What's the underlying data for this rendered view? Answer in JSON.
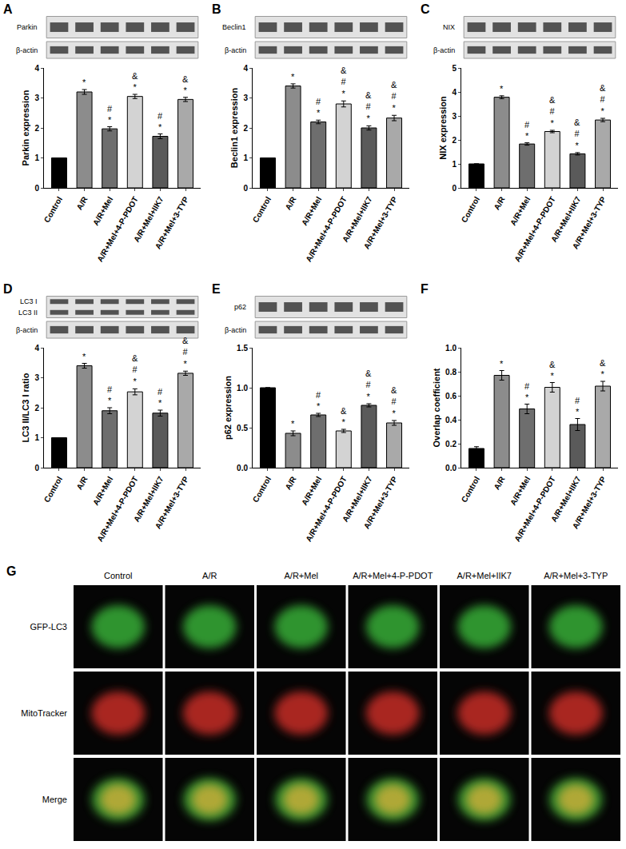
{
  "chart_data": [
    {
      "type": "bar",
      "title": "A",
      "ylabel": "Parkin expression",
      "blot_labels": [
        "Parkin",
        "β-actin"
      ],
      "categories": [
        "Control",
        "A/R",
        "A/R+Mel",
        "A/R+Mel+4-P-PDOT",
        "A/R+Mel+IIK7",
        "A/R+Mel+3-TYP"
      ],
      "values": [
        1,
        3.2,
        1.97,
        3.05,
        1.72,
        2.95
      ],
      "errors": [
        0,
        0.08,
        0.07,
        0.07,
        0.08,
        0.07
      ],
      "colors": [
        "#000000",
        "#8c8c8c",
        "#6e6e6e",
        "#d3d3d3",
        "#5a5a5a",
        "#a9a9a9"
      ],
      "ylim": [
        0,
        4
      ],
      "yticks": [
        0,
        1,
        2,
        3,
        4
      ],
      "grid": false,
      "annotations": [
        {
          "x": "A/R",
          "text": [
            "*"
          ]
        },
        {
          "x": "A/R+Mel",
          "text": [
            "#",
            "*"
          ]
        },
        {
          "x": "A/R+Mel+4-P-PDOT",
          "text": [
            "&",
            "*"
          ]
        },
        {
          "x": "A/R+Mel+IIK7",
          "text": [
            "#",
            "*"
          ]
        },
        {
          "x": "A/R+Mel+3-TYP",
          "text": [
            "&",
            "*"
          ]
        }
      ]
    },
    {
      "type": "bar",
      "title": "B",
      "ylabel": "Beclin1 expression",
      "blot_labels": [
        "Beclin1",
        "β-actin"
      ],
      "categories": [
        "Control",
        "A/R",
        "A/R+Mel",
        "A/R+Mel+4-P-PDOT",
        "A/R+Mel+IIK7",
        "A/R+Mel+3-TYP"
      ],
      "values": [
        1,
        3.4,
        2.2,
        2.8,
        2.0,
        2.33
      ],
      "errors": [
        0,
        0.07,
        0.06,
        0.1,
        0.07,
        0.09
      ],
      "colors": [
        "#000000",
        "#8c8c8c",
        "#6e6e6e",
        "#d3d3d3",
        "#5a5a5a",
        "#a9a9a9"
      ],
      "ylim": [
        0,
        4
      ],
      "yticks": [
        0,
        1,
        2,
        3,
        4
      ],
      "grid": false,
      "annotations": [
        {
          "x": "A/R",
          "text": [
            "*"
          ]
        },
        {
          "x": "A/R+Mel",
          "text": [
            "#",
            "*"
          ]
        },
        {
          "x": "A/R+Mel+4-P-PDOT",
          "text": [
            "&",
            "#",
            "*"
          ]
        },
        {
          "x": "A/R+Mel+IIK7",
          "text": [
            "&",
            "#",
            "*"
          ]
        },
        {
          "x": "A/R+Mel+3-TYP",
          "text": [
            "&",
            "#",
            "*"
          ]
        }
      ]
    },
    {
      "type": "bar",
      "title": "C",
      "ylabel": "NIX expression",
      "blot_labels": [
        "NIX",
        "β-actin"
      ],
      "categories": [
        "Control",
        "A/R",
        "A/R+Mel",
        "A/R+Mel+4-P-PDOT",
        "A/R+Mel+IIK7",
        "A/R+Mel+3-TYP"
      ],
      "values": [
        1,
        3.78,
        1.83,
        2.35,
        1.42,
        2.83
      ],
      "errors": [
        0,
        0.06,
        0.05,
        0.05,
        0.05,
        0.07
      ],
      "colors": [
        "#000000",
        "#8c8c8c",
        "#6e6e6e",
        "#d3d3d3",
        "#5a5a5a",
        "#a9a9a9"
      ],
      "ylim": [
        0,
        5
      ],
      "yticks": [
        0,
        1,
        2,
        3,
        4,
        5
      ],
      "grid": false,
      "annotations": [
        {
          "x": "A/R",
          "text": [
            "*"
          ]
        },
        {
          "x": "A/R+Mel",
          "text": [
            "#",
            "*"
          ]
        },
        {
          "x": "A/R+Mel+4-P-PDOT",
          "text": [
            "&",
            "#",
            "*"
          ]
        },
        {
          "x": "A/R+Mel+IIK7",
          "text": [
            "&",
            "#",
            "*"
          ]
        },
        {
          "x": "A/R+Mel+3-TYP",
          "text": [
            "&",
            "#",
            "*"
          ]
        }
      ]
    },
    {
      "type": "bar",
      "title": "D",
      "ylabel": "LC3 II/LC3 I ratio",
      "blot_labels": [
        "LC3 I",
        "LC3 II",
        "β-actin"
      ],
      "categories": [
        "Control",
        "A/R",
        "A/R+Mel",
        "A/R+Mel+4-P-PDOT",
        "A/R+Mel+IIK7",
        "A/R+Mel+3-TYP"
      ],
      "values": [
        1,
        3.4,
        1.9,
        2.53,
        1.82,
        3.15
      ],
      "errors": [
        0,
        0.08,
        0.1,
        0.1,
        0.1,
        0.07
      ],
      "colors": [
        "#000000",
        "#8c8c8c",
        "#6e6e6e",
        "#d3d3d3",
        "#5a5a5a",
        "#a9a9a9"
      ],
      "ylim": [
        0,
        4
      ],
      "yticks": [
        0,
        1,
        2,
        3,
        4
      ],
      "grid": false,
      "annotations": [
        {
          "x": "A/R",
          "text": [
            "*"
          ]
        },
        {
          "x": "A/R+Mel",
          "text": [
            "#",
            "*"
          ]
        },
        {
          "x": "A/R+Mel+4-P-PDOT",
          "text": [
            "&",
            "#",
            "*"
          ]
        },
        {
          "x": "A/R+Mel+IIK7",
          "text": [
            "#",
            "*"
          ]
        },
        {
          "x": "A/R+Mel+3-TYP",
          "text": [
            "&",
            "#",
            "*"
          ]
        }
      ]
    },
    {
      "type": "bar",
      "title": "E",
      "ylabel": "p62 expression",
      "blot_labels": [
        "p62",
        "β-actin"
      ],
      "categories": [
        "Control",
        "A/R",
        "A/R+Mel",
        "A/R+Mel+4-P-PDOT",
        "A/R+Mel+IIK7",
        "A/R+Mel+3-TYP"
      ],
      "values": [
        1,
        0.43,
        0.66,
        0.46,
        0.78,
        0.56
      ],
      "errors": [
        0,
        0.03,
        0.02,
        0.02,
        0.02,
        0.03
      ],
      "colors": [
        "#000000",
        "#8c8c8c",
        "#6e6e6e",
        "#d3d3d3",
        "#5a5a5a",
        "#a9a9a9"
      ],
      "ylim": [
        0,
        1.5
      ],
      "yticks": [
        {
          "value": 0,
          "label": "0.0"
        },
        {
          "value": 0.5,
          "label": "0.5"
        },
        {
          "value": 1,
          "label": "1.0"
        },
        {
          "value": 1.5,
          "label": "1.5"
        }
      ],
      "grid": false,
      "annotations": [
        {
          "x": "A/R",
          "text": [
            "*"
          ]
        },
        {
          "x": "A/R+Mel",
          "text": [
            "#",
            "*"
          ]
        },
        {
          "x": "A/R+Mel+4-P-PDOT",
          "text": [
            "&",
            "*"
          ]
        },
        {
          "x": "A/R+Mel+IIK7",
          "text": [
            "&",
            "#",
            "*"
          ]
        },
        {
          "x": "A/R+Mel+3-TYP",
          "text": [
            "&",
            "#",
            "*"
          ]
        }
      ]
    },
    {
      "type": "bar",
      "title": "F",
      "ylabel": "Overlap coefficient",
      "categories": [
        "Control",
        "A/R",
        "A/R+Mel",
        "A/R+Mel+4-P-PDOT",
        "A/R+Mel+IIK7",
        "A/R+Mel+3-TYP"
      ],
      "values": [
        0.16,
        0.77,
        0.49,
        0.67,
        0.36,
        0.68
      ],
      "errors": [
        0.015,
        0.04,
        0.04,
        0.04,
        0.05,
        0.04
      ],
      "colors": [
        "#000000",
        "#8c8c8c",
        "#6e6e6e",
        "#d3d3d3",
        "#5a5a5a",
        "#a9a9a9"
      ],
      "ylim": [
        0,
        1
      ],
      "yticks": [
        {
          "value": 0,
          "label": "0.0"
        },
        {
          "value": 0.2,
          "label": "0.2"
        },
        {
          "value": 0.4,
          "label": "0.4"
        },
        {
          "value": 0.6,
          "label": "0.6"
        },
        {
          "value": 0.8,
          "label": "0.8"
        },
        {
          "value": 1,
          "label": "1.0"
        }
      ],
      "grid": false,
      "annotations": [
        {
          "x": "A/R",
          "text": [
            "*"
          ]
        },
        {
          "x": "A/R+Mel",
          "text": [
            "#",
            "*"
          ]
        },
        {
          "x": "A/R+Mel+4-P-PDOT",
          "text": [
            "&",
            "*"
          ]
        },
        {
          "x": "A/R+Mel+IIK7",
          "text": [
            "#",
            "*"
          ]
        },
        {
          "x": "A/R+Mel+3-TYP",
          "text": [
            "&",
            "*"
          ]
        }
      ]
    }
  ],
  "image_panel": {
    "title": "G",
    "columns": [
      "Control",
      "A/R",
      "A/R+Mel",
      "A/R+Mel+4-P-PDOT",
      "A/R+Mel+IIK7",
      "A/R+Mel+3-TYP"
    ],
    "rows": [
      "GFP-LC3",
      "MitoTracker",
      "Merge"
    ]
  }
}
